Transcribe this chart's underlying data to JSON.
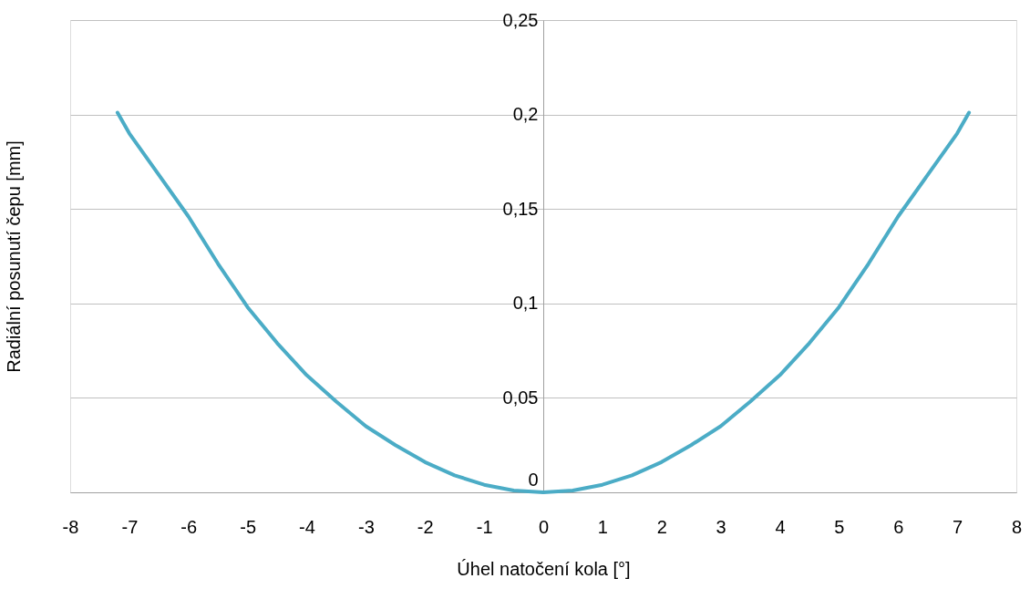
{
  "chart_data": {
    "type": "line",
    "xlabel": "Úhel natočení kola [°]",
    "ylabel": "Radiální posunutí čepu [mm]",
    "x": [
      -7.2,
      -7,
      -6.5,
      -6,
      -5.5,
      -5,
      -4.5,
      -4,
      -3.5,
      -3,
      -2.5,
      -2,
      -1.5,
      -1,
      -0.5,
      0,
      0.5,
      1,
      1.5,
      2,
      2.5,
      3,
      3.5,
      4,
      4.5,
      5,
      5.5,
      6,
      6.5,
      7,
      7.2
    ],
    "series": [
      {
        "color": "#4bacc6",
        "values": [
          0.201,
          0.19,
          0.168,
          0.146,
          0.121,
          0.098,
          0.079,
          0.062,
          0.048,
          0.035,
          0.025,
          0.016,
          0.009,
          0.004,
          0.001,
          0,
          0.001,
          0.004,
          0.009,
          0.016,
          0.025,
          0.035,
          0.048,
          0.062,
          0.079,
          0.098,
          0.121,
          0.146,
          0.168,
          0.19,
          0.201
        ]
      }
    ],
    "xlim": [
      -8,
      8
    ],
    "xticks": [
      -8,
      -7,
      -6,
      -5,
      -4,
      -3,
      -2,
      -1,
      0,
      1,
      2,
      3,
      4,
      5,
      6,
      7,
      8
    ],
    "ylim": [
      0,
      0.25
    ],
    "yticks": [
      0,
      {
        "value": 0.05,
        "label": "0,05"
      },
      {
        "value": 0.1,
        "label": "0,1"
      },
      {
        "value": 0.15,
        "label": "0,15"
      },
      {
        "value": 0.2,
        "label": "0,2"
      },
      {
        "value": 0.25,
        "label": "0,25"
      }
    ],
    "grid": "y",
    "marker": "none",
    "line_style": "solid"
  }
}
